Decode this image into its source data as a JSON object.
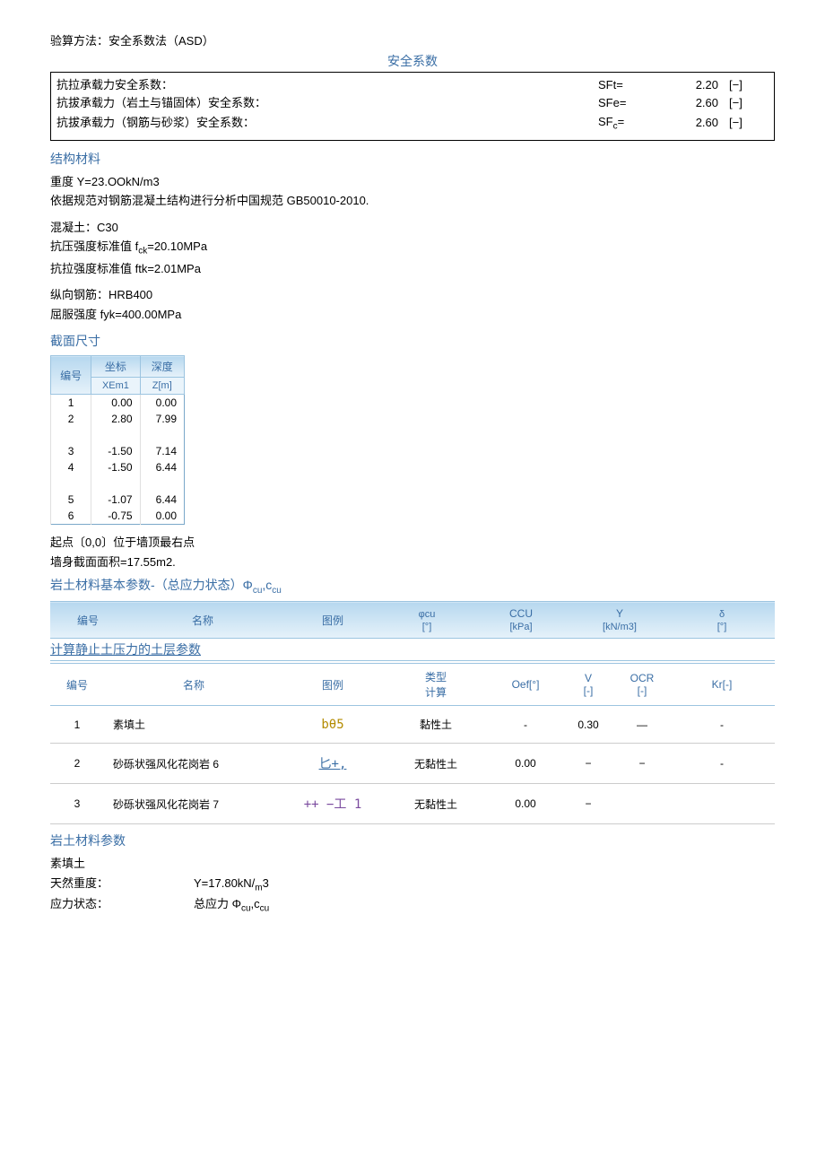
{
  "method_label": "验算方法：安全系数法（ASD）",
  "safety_title": "安全系数",
  "safety_rows": [
    {
      "label": "抗拉承载力安全系数：",
      "sym": "SFt=",
      "val": "2.20",
      "unit": "[−]"
    },
    {
      "label": "抗拔承载力（岩土与锚固体）安全系数：",
      "sym": "SFe=",
      "val": "2.60",
      "unit": "[−]"
    },
    {
      "label": "抗拔承载力（钢筋与砂浆）安全系数：",
      "sym": "SFc=",
      "val": "2.60",
      "unit": "[−]"
    }
  ],
  "struct_title": "结构材料",
  "struct_lines": [
    "重度 Y=23.OOkN/m3",
    "依据规范对钢筋混凝土结构进行分析中国规范 GB50010-2010."
  ],
  "concrete_lines": [
    "混凝土：C30",
    "抗压强度标准值 fck=20.10MPa",
    "抗拉强度标准值 ftk=2.01MPa"
  ],
  "rebar_lines": [
    "纵向钢筋：HRB400",
    "屈服强度 fyk=400.00MPa"
  ],
  "section_title": "截面尺寸",
  "section_headers": {
    "c0": "编号",
    "c1": "坐标",
    "c2": "深度",
    "c1b": "XEm1",
    "c2b": "Z[m]"
  },
  "section_rows": [
    {
      "n": "1",
      "x": "0.00",
      "z": "0.00"
    },
    {
      "n": "2",
      "x": "2.80",
      "z": "7.99"
    },
    {
      "n": "",
      "x": "",
      "z": ""
    },
    {
      "n": "3",
      "x": "-1.50",
      "z": "7.14"
    },
    {
      "n": "4",
      "x": "-1.50",
      "z": "6.44"
    },
    {
      "n": "",
      "x": "",
      "z": ""
    },
    {
      "n": "5",
      "x": "-1.07",
      "z": "6.44"
    },
    {
      "n": "6",
      "x": "-0.75",
      "z": "0.00"
    }
  ],
  "origin_note": "起点〔0,0〕位于墙顶最右点",
  "area_note": "墙身截面面积=17.55m2.",
  "soil_basic_title": "岩土材料基本参数-（总应力状态）Φcu,ccu",
  "basic_headers": {
    "c0": "编号",
    "c1": "名称",
    "c2": "图例",
    "c3a": "φcu",
    "c3b": "[°]",
    "c4a": "CCU",
    "c4b": "[kPa]",
    "c5a": "Y",
    "c5b": "[kN/m3]",
    "c6a": "δ",
    "c6b": "[°]"
  },
  "static_title": "计算静止土压力的土层参数",
  "static_headers": {
    "c0": "编号",
    "c1": "名称",
    "c2": "图例",
    "c3a": "类型",
    "c3b": "计算",
    "c4": "Oef[°]",
    "c5a": "V",
    "c5b": "[-]",
    "c6a": "OCR",
    "c6b": "[-]",
    "c7": "Kr[-]"
  },
  "static_rows": [
    {
      "n": "1",
      "name": "素填土",
      "pat": "bθ5",
      "type": "黏性土",
      "oef": "-",
      "v": "0.30",
      "ocr": "—",
      "kr": "-"
    },
    {
      "n": "2",
      "name": "砂砾状强风化花岗岩 6",
      "pat": "匕+,",
      "type": "无黏性土",
      "oef": "0.00",
      "v": "−",
      "ocr": "−",
      "kr": "-"
    },
    {
      "n": "3",
      "name": "砂砾状强风化花岗岩 7",
      "pat": "++  −工  1",
      "type": "无黏性土",
      "oef": "0.00",
      "v": "−",
      "ocr": "",
      "kr": ""
    }
  ],
  "soil_param_title": "岩土材料参数",
  "fill_heading": "素填土",
  "fill_props": [
    {
      "k": "天然重度：",
      "v": "Y=17.80kN/m3"
    },
    {
      "k": "应力状态：",
      "v": "总应力 Φcu,ccu"
    }
  ]
}
